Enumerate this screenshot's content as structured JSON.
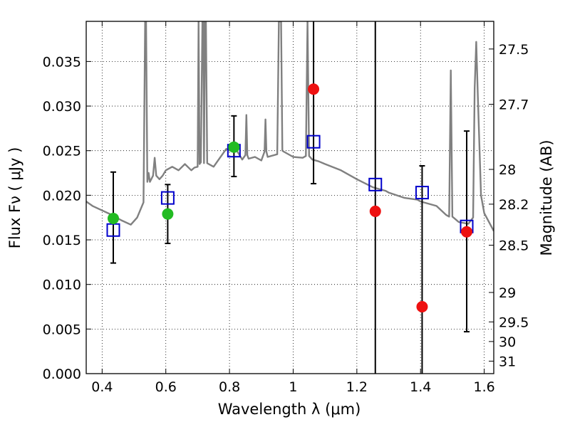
{
  "chart_data": {
    "type": "scatter",
    "xlabel": "Wavelength  λ (μm)",
    "ylabel": "Flux  Fν  ( μJy )",
    "y2label": "Magnitude (AB)",
    "xlim": [
      0.35,
      1.63
    ],
    "ylim": [
      0.0,
      0.0395
    ],
    "grid": true,
    "x_ticks": [
      0.4,
      0.6,
      0.8,
      1.0,
      1.2,
      1.4,
      1.6
    ],
    "x_tick_labels": [
      "0.4",
      "0.6",
      "0.8",
      "1",
      "1.2",
      "1.4",
      "1.6"
    ],
    "y_ticks": [
      0.0,
      0.005,
      0.01,
      0.015,
      0.02,
      0.025,
      0.03,
      0.035
    ],
    "y_tick_labels": [
      "0.000",
      "0.005",
      "0.010",
      "0.015",
      "0.020",
      "0.025",
      "0.030",
      "0.035"
    ],
    "y2_ticks": [
      {
        "label": "27.5",
        "flux": 0.0364
      },
      {
        "label": "27.7",
        "flux": 0.0302
      },
      {
        "label": "28",
        "flux": 0.0229
      },
      {
        "label": "28.2",
        "flux": 0.019
      },
      {
        "label": "28.5",
        "flux": 0.0144
      },
      {
        "label": "29",
        "flux": 0.0091
      },
      {
        "label": "29.5",
        "flux": 0.0058
      },
      {
        "label": "30",
        "flux": 0.0036
      },
      {
        "label": "31",
        "flux": 0.0014
      }
    ],
    "series": [
      {
        "kind": "spectrum",
        "color": "#808080",
        "x": [
          0.35,
          0.37,
          0.4,
          0.43,
          0.46,
          0.49,
          0.51,
          0.53,
          0.535,
          0.538,
          0.542,
          0.546,
          0.55,
          0.56,
          0.565,
          0.57,
          0.58,
          0.59,
          0.6,
          0.62,
          0.64,
          0.66,
          0.68,
          0.69,
          0.7,
          0.703,
          0.706,
          0.71,
          0.715,
          0.718,
          0.72,
          0.723,
          0.726,
          0.73,
          0.75,
          0.77,
          0.79,
          0.8,
          0.82,
          0.84,
          0.85,
          0.853,
          0.856,
          0.86,
          0.88,
          0.9,
          0.91,
          0.913,
          0.916,
          0.92,
          0.94,
          0.95,
          0.955,
          0.958,
          0.962,
          0.966,
          0.97,
          0.99,
          1.0,
          1.03,
          1.04,
          1.045,
          1.05,
          1.06,
          1.08,
          1.1,
          1.15,
          1.2,
          1.25,
          1.29,
          1.3,
          1.35,
          1.39,
          1.4,
          1.45,
          1.48,
          1.49,
          1.495,
          1.5,
          1.51,
          1.52,
          1.55,
          1.565,
          1.57,
          1.575,
          1.58,
          1.59,
          1.6,
          1.63
        ],
        "y": [
          0.0193,
          0.0188,
          0.0183,
          0.0178,
          0.0172,
          0.0167,
          0.0175,
          0.0192,
          0.0395,
          0.0395,
          0.0215,
          0.0225,
          0.0215,
          0.0222,
          0.0242,
          0.0222,
          0.0218,
          0.0222,
          0.0228,
          0.0232,
          0.0228,
          0.0235,
          0.0228,
          0.0231,
          0.0232,
          0.0395,
          0.0235,
          0.0237,
          0.0395,
          0.0395,
          0.0236,
          0.0395,
          0.0395,
          0.0236,
          0.0232,
          0.0242,
          0.0252,
          0.025,
          0.0252,
          0.024,
          0.0245,
          0.029,
          0.0245,
          0.0241,
          0.0243,
          0.0239,
          0.0249,
          0.0285,
          0.0249,
          0.0243,
          0.0245,
          0.0246,
          0.0395,
          0.0395,
          0.0395,
          0.025,
          0.0249,
          0.0245,
          0.0243,
          0.0242,
          0.0244,
          0.0395,
          0.0244,
          0.024,
          0.0238,
          0.0235,
          0.0228,
          0.0218,
          0.0209,
          0.0205,
          0.0203,
          0.0197,
          0.0195,
          0.0193,
          0.0188,
          0.0178,
          0.0176,
          0.034,
          0.0176,
          0.0173,
          0.017,
          0.0168,
          0.0175,
          0.032,
          0.0372,
          0.031,
          0.02,
          0.018,
          0.016
        ]
      },
      {
        "kind": "squares",
        "color": "#0000cc",
        "x": [
          0.435,
          0.606,
          0.814,
          1.064,
          1.258,
          1.405,
          1.545
        ],
        "y": [
          0.0161,
          0.0197,
          0.025,
          0.026,
          0.0212,
          0.0203,
          0.0165
        ]
      },
      {
        "kind": "circles",
        "color": "#22bb22",
        "x": [
          0.435,
          0.606,
          0.814
        ],
        "y": [
          0.0174,
          0.0179,
          0.0254
        ]
      },
      {
        "kind": "circles",
        "color": "#ee1111",
        "x": [
          1.064,
          1.258,
          1.405,
          1.545
        ],
        "y": [
          0.0319,
          0.0182,
          0.0075,
          0.0159
        ]
      }
    ],
    "error_bars": [
      {
        "x": 0.435,
        "low": 0.0124,
        "high": 0.0226
      },
      {
        "x": 0.606,
        "low": 0.0146,
        "high": 0.0212
      },
      {
        "x": 0.814,
        "low": 0.0221,
        "high": 0.0289
      },
      {
        "x": 1.064,
        "low": 0.0213,
        "high": 0.0395
      },
      {
        "x": 1.258,
        "low": 0.0,
        "high": 0.0395
      },
      {
        "x": 1.405,
        "low": 0.0,
        "high": 0.0233
      },
      {
        "x": 1.545,
        "low": 0.0047,
        "high": 0.0272
      }
    ]
  }
}
